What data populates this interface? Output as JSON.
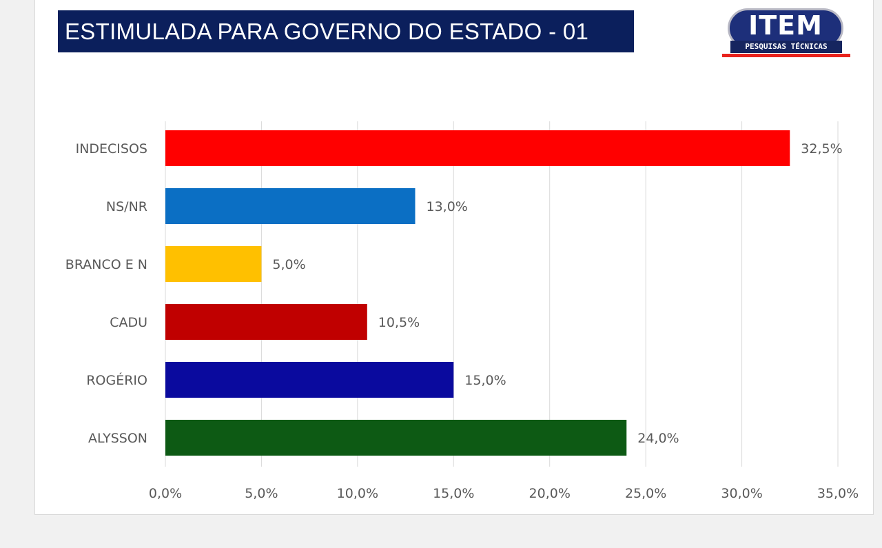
{
  "title": "ESTIMULADA PARA GOVERNO DO ESTADO - 01",
  "logo": {
    "word": "ITEM",
    "subtitle": "PESQUISAS TÉCNICAS",
    "pill_color": "#1d2f7a",
    "accent_color": "#e8231d"
  },
  "chart_data": {
    "type": "bar",
    "orientation": "horizontal",
    "title": "ESTIMULADA PARA GOVERNO DO ESTADO - 01",
    "categories": [
      "INDECISOS",
      "NS/NR",
      "BRANCO E N",
      "CADU",
      "ROGÉRIO",
      "ALYSSON"
    ],
    "values": [
      32.5,
      13.0,
      5.0,
      10.5,
      15.0,
      24.0
    ],
    "value_labels": [
      "32,5%",
      "13,0%",
      "5,0%",
      "10,5%",
      "15,0%",
      "24,0%"
    ],
    "colors": [
      "#ff0000",
      "#0b6fc4",
      "#ffc000",
      "#c00000",
      "#0a0a9e",
      "#0d5a14"
    ],
    "xlim": [
      0,
      35
    ],
    "xticks": [
      0,
      5,
      10,
      15,
      20,
      25,
      30,
      35
    ],
    "xtick_labels": [
      "0,0%",
      "5,0%",
      "10,0%",
      "15,0%",
      "20,0%",
      "25,0%",
      "30,0%",
      "35,0%"
    ],
    "xlabel": "",
    "ylabel": "",
    "grid": true,
    "legend": "none"
  }
}
